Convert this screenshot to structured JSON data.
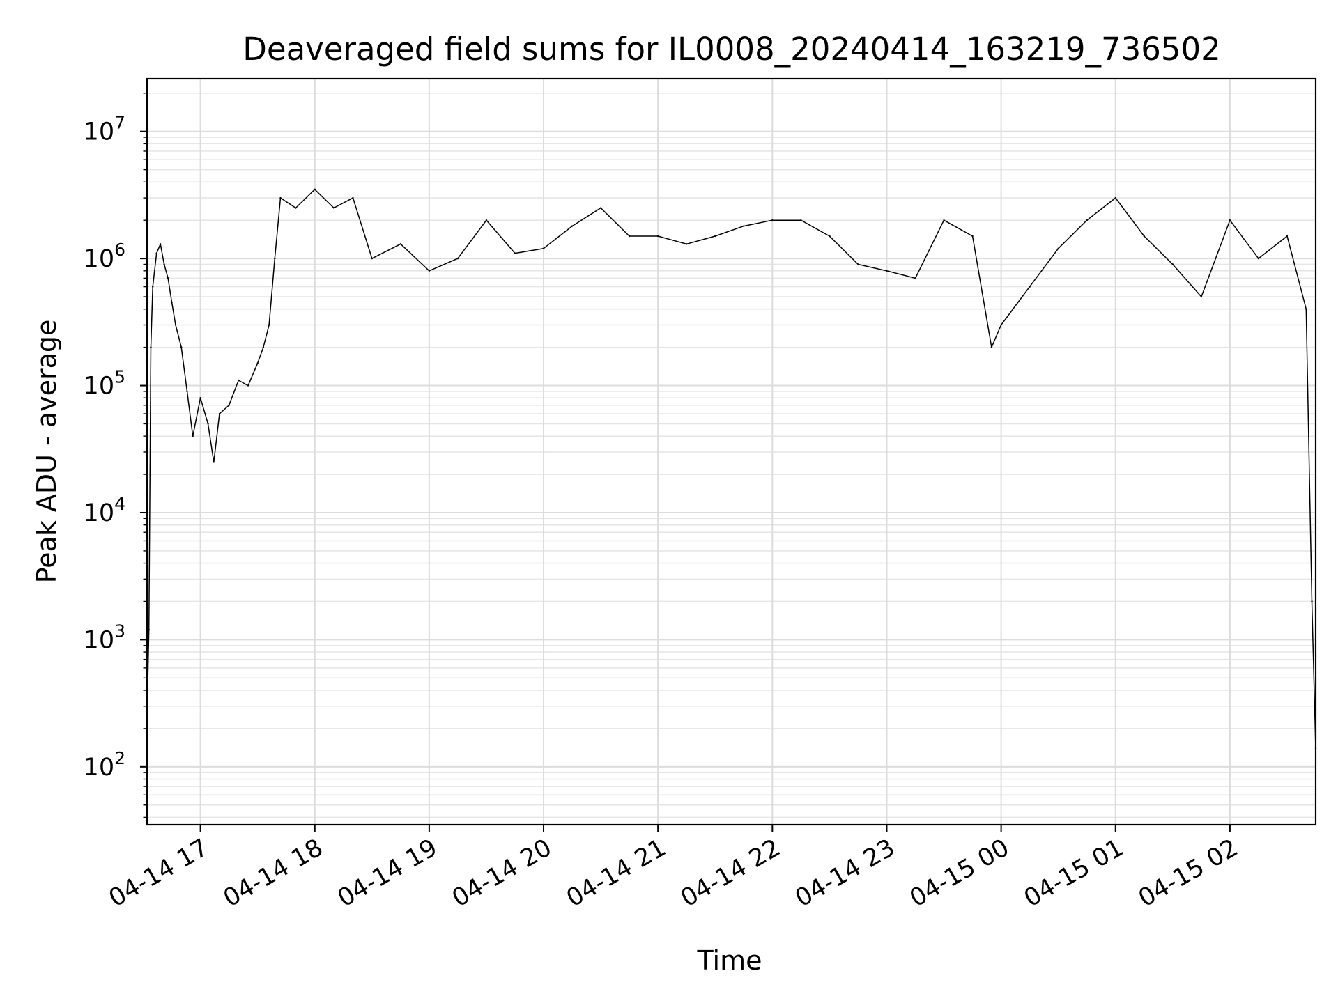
{
  "chart_data": {
    "type": "line",
    "title": "Deaveraged field sums for IL0008_20240414_163219_736502",
    "xlabel": "Time",
    "ylabel": "Peak ADU - average",
    "yscale": "log",
    "ylim": [
      35,
      26000000
    ],
    "xlim": [
      "2024-04-14 16:32",
      "2024-04-15 02:45"
    ],
    "grid": true,
    "x_ticks": [
      {
        "value": "2024-04-14 17:00",
        "label": "04-14 17"
      },
      {
        "value": "2024-04-14 18:00",
        "label": "04-14 18"
      },
      {
        "value": "2024-04-14 19:00",
        "label": "04-14 19"
      },
      {
        "value": "2024-04-14 20:00",
        "label": "04-14 20"
      },
      {
        "value": "2024-04-14 21:00",
        "label": "04-14 21"
      },
      {
        "value": "2024-04-14 22:00",
        "label": "04-14 22"
      },
      {
        "value": "2024-04-14 23:00",
        "label": "04-14 23"
      },
      {
        "value": "2024-04-15 00:00",
        "label": "04-15 00"
      },
      {
        "value": "2024-04-15 01:00",
        "label": "04-15 01"
      },
      {
        "value": "2024-04-15 02:00",
        "label": "04-15 02"
      }
    ],
    "y_ticks": [
      {
        "value": 100,
        "base": "10",
        "exp": "2"
      },
      {
        "value": 1000,
        "base": "10",
        "exp": "3"
      },
      {
        "value": 10000,
        "base": "10",
        "exp": "4"
      },
      {
        "value": 100000,
        "base": "10",
        "exp": "5"
      },
      {
        "value": 1000000,
        "base": "10",
        "exp": "6"
      },
      {
        "value": 10000000,
        "base": "10",
        "exp": "7"
      }
    ],
    "series": [
      {
        "color": "#000000",
        "points": [
          [
            "2024-04-14 16:32",
            250
          ],
          [
            "2024-04-14 16:33",
            1200
          ],
          [
            "2024-04-14 16:34",
            200000
          ],
          [
            "2024-04-14 16:35",
            600000
          ],
          [
            "2024-04-14 16:37",
            1100000
          ],
          [
            "2024-04-14 16:39",
            1300000
          ],
          [
            "2024-04-14 16:41",
            900000
          ],
          [
            "2024-04-14 16:43",
            700000
          ],
          [
            "2024-04-14 16:45",
            450000
          ],
          [
            "2024-04-14 16:47",
            300000
          ],
          [
            "2024-04-14 16:50",
            200000
          ],
          [
            "2024-04-14 16:53",
            90000
          ],
          [
            "2024-04-14 16:56",
            40000
          ],
          [
            "2024-04-14 17:00",
            80000
          ],
          [
            "2024-04-14 17:04",
            50000
          ],
          [
            "2024-04-14 17:07",
            25000
          ],
          [
            "2024-04-14 17:10",
            60000
          ],
          [
            "2024-04-14 17:15",
            70000
          ],
          [
            "2024-04-14 17:20",
            110000
          ],
          [
            "2024-04-14 17:25",
            100000
          ],
          [
            "2024-04-14 17:30",
            150000
          ],
          [
            "2024-04-14 17:33",
            200000
          ],
          [
            "2024-04-14 17:36",
            300000
          ],
          [
            "2024-04-14 17:39",
            1000000
          ],
          [
            "2024-04-14 17:42",
            3000000
          ],
          [
            "2024-04-14 17:50",
            2500000
          ],
          [
            "2024-04-14 18:00",
            3500000
          ],
          [
            "2024-04-14 18:10",
            2500000
          ],
          [
            "2024-04-14 18:20",
            3000000
          ],
          [
            "2024-04-14 18:30",
            1000000
          ],
          [
            "2024-04-14 18:45",
            1300000
          ],
          [
            "2024-04-14 19:00",
            800000
          ],
          [
            "2024-04-14 19:15",
            1000000
          ],
          [
            "2024-04-14 19:30",
            2000000
          ],
          [
            "2024-04-14 19:45",
            1100000
          ],
          [
            "2024-04-14 20:00",
            1200000
          ],
          [
            "2024-04-14 20:15",
            1800000
          ],
          [
            "2024-04-14 20:30",
            2500000
          ],
          [
            "2024-04-14 20:45",
            1500000
          ],
          [
            "2024-04-14 21:00",
            1500000
          ],
          [
            "2024-04-14 21:15",
            1300000
          ],
          [
            "2024-04-14 21:30",
            1500000
          ],
          [
            "2024-04-14 21:45",
            1800000
          ],
          [
            "2024-04-14 22:00",
            2000000
          ],
          [
            "2024-04-14 22:15",
            2000000
          ],
          [
            "2024-04-14 22:30",
            1500000
          ],
          [
            "2024-04-14 22:45",
            900000
          ],
          [
            "2024-04-14 23:00",
            800000
          ],
          [
            "2024-04-14 23:15",
            700000
          ],
          [
            "2024-04-14 23:30",
            2000000
          ],
          [
            "2024-04-14 23:45",
            1500000
          ],
          [
            "2024-04-14 23:55",
            200000
          ],
          [
            "2024-04-15 00:00",
            300000
          ],
          [
            "2024-04-15 00:15",
            600000
          ],
          [
            "2024-04-15 00:30",
            1200000
          ],
          [
            "2024-04-15 00:45",
            2000000
          ],
          [
            "2024-04-15 01:00",
            3000000
          ],
          [
            "2024-04-15 01:15",
            1500000
          ],
          [
            "2024-04-15 01:30",
            900000
          ],
          [
            "2024-04-15 01:45",
            500000
          ],
          [
            "2024-04-15 02:00",
            2000000
          ],
          [
            "2024-04-15 02:15",
            1000000
          ],
          [
            "2024-04-15 02:30",
            1500000
          ],
          [
            "2024-04-15 02:40",
            400000
          ],
          [
            "2024-04-15 02:43",
            2000
          ],
          [
            "2024-04-15 02:45",
            140
          ]
        ]
      }
    ]
  }
}
